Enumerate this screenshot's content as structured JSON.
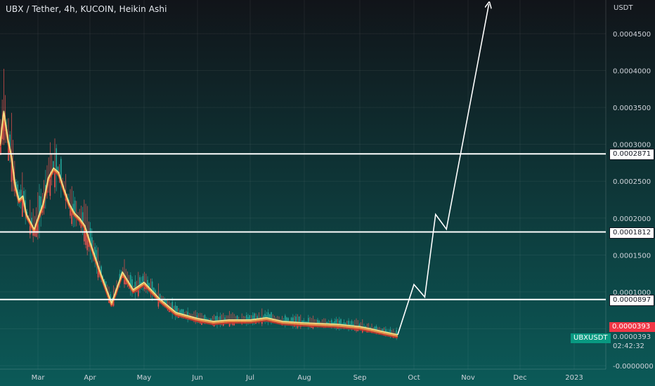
{
  "header": {
    "title": "UBX / Tether, 4h, KUCOIN, Heikin Ashi"
  },
  "axis": {
    "unit": "USDT"
  },
  "price_badges": {
    "last_price": "0.0000393",
    "symbol": "UBXUSDT",
    "symbol_price": "0.0000393",
    "countdown": "02:42:32"
  },
  "colors": {
    "background_top": "#111419",
    "background_bottom": "#0b5a58",
    "ma_fast": "#f2e38a",
    "ma_band_outer": "#c9352b",
    "ma_band_inner": "#f09a4a",
    "candle_up": "#26a69a",
    "candle_down": "#ef5350",
    "level_line": "#ffffff",
    "last_price_badge": "#f23645",
    "symbol_badge": "#089981"
  },
  "chart_data": {
    "type": "line",
    "title": "UBX / Tether, 4h, KUCOIN, Heikin Ashi",
    "xlabel": "",
    "ylabel": "USDT",
    "x_ticks": [
      "Mar",
      "Apr",
      "May",
      "Jun",
      "Jul",
      "Aug",
      "Sep",
      "Oct",
      "Nov",
      "Dec",
      "2023"
    ],
    "y_ticks": [
      -0.0,
      5e-05,
      0.0001,
      0.00015,
      0.0002,
      0.00025,
      0.0003,
      0.00035,
      0.0004,
      0.00045
    ],
    "y_tick_labels": [
      "-0.0000000",
      "0.0000500",
      "0.0001000",
      "0.0001500",
      "0.0002000",
      "0.0002500",
      "0.0003000",
      "0.0003500",
      "0.0004000",
      "0.0004500"
    ],
    "ylim": [
      -5e-07,
      0.00049
    ],
    "levels": [
      {
        "value": 0.0002871,
        "label": "0.0002871"
      },
      {
        "value": 0.0001812,
        "label": "0.0001812"
      },
      {
        "value": 8.97e-05,
        "label": "0.0000897"
      }
    ],
    "series": [
      {
        "kind": "price",
        "x": [
          0.0,
          0.1,
          0.2,
          0.3,
          0.4,
          0.5,
          0.6,
          0.7,
          0.8,
          0.9,
          1.0,
          1.1,
          1.2,
          1.3,
          1.4,
          1.5,
          1.6,
          1.7,
          1.8,
          1.9,
          2.0,
          2.2,
          2.4,
          2.6,
          2.8,
          3.0,
          3.3,
          3.6,
          4.0,
          4.3,
          4.6,
          5.0,
          5.3,
          5.6,
          6.0,
          6.3,
          6.6,
          7.0,
          7.2,
          7.5,
          7.7
        ],
        "values": [
          0.0003,
          0.000345,
          0.00031,
          0.000285,
          0.000245,
          0.000225,
          0.00023,
          0.000205,
          0.000195,
          0.000185,
          0.0002,
          0.00022,
          0.000255,
          0.000268,
          0.000262,
          0.00024,
          0.00022,
          0.000207,
          0.0002,
          0.00019,
          0.000168,
          0.000125,
          8.5e-05,
          0.000127,
          0.000103,
          0.000113,
          9e-05,
          7.2e-05,
          6.4e-05,
          6e-05,
          6.2e-05,
          6.2e-05,
          6.5e-05,
          6e-05,
          5.8e-05,
          5.7e-05,
          5.6e-05,
          5.3e-05,
          5e-05,
          4.5e-05,
          4.2e-05
        ]
      },
      {
        "kind": "projection",
        "x": [
          7.7,
          8.0,
          8.2,
          8.4,
          8.6,
          9.4
        ],
        "values": [
          4.2e-05,
          0.00011,
          9.3e-05,
          0.000205,
          0.000185,
          0.00049
        ]
      }
    ]
  }
}
